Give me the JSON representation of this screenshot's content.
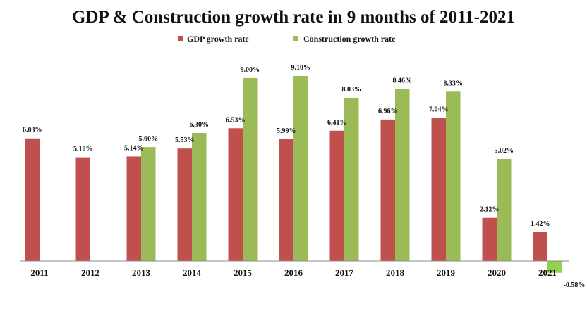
{
  "chart_data": {
    "type": "bar",
    "title": "GDP & Construction growth rate in 9 months of 2011-2021",
    "xlabel": "",
    "ylabel": "",
    "categories": [
      "2011",
      "2012",
      "2013",
      "2014",
      "2015",
      "2016",
      "2017",
      "2018",
      "2019",
      "2020",
      "2021"
    ],
    "series": [
      {
        "name": "GDP growth rate",
        "color": "#C0504D",
        "values": [
          6.03,
          5.1,
          5.14,
          5.53,
          6.53,
          5.99,
          6.41,
          6.96,
          7.04,
          2.12,
          1.42
        ],
        "labels": [
          "6.03%",
          "5.10%",
          "5.14%",
          "5.53%",
          "6.53%",
          "5.99%",
          "6.41%",
          "6.96%",
          "7.04%",
          "2.12%",
          "1.42%"
        ]
      },
      {
        "name": "Construction growth rate",
        "color": "#9BBB59",
        "negative_color": "#92D050",
        "values": [
          null,
          null,
          5.6,
          6.3,
          9.0,
          9.1,
          8.03,
          8.46,
          8.33,
          5.02,
          -0.58
        ],
        "labels": [
          null,
          null,
          "5.60%",
          "6.30%",
          "9.00%",
          "9.10%",
          "8.03%",
          "8.46%",
          "8.33%",
          "5.02%",
          "-0.58%"
        ]
      }
    ],
    "ylim": [
      -0.6,
      10
    ],
    "grid": false,
    "legend_position": "top-center",
    "axis_color": "#8c8c8c"
  }
}
